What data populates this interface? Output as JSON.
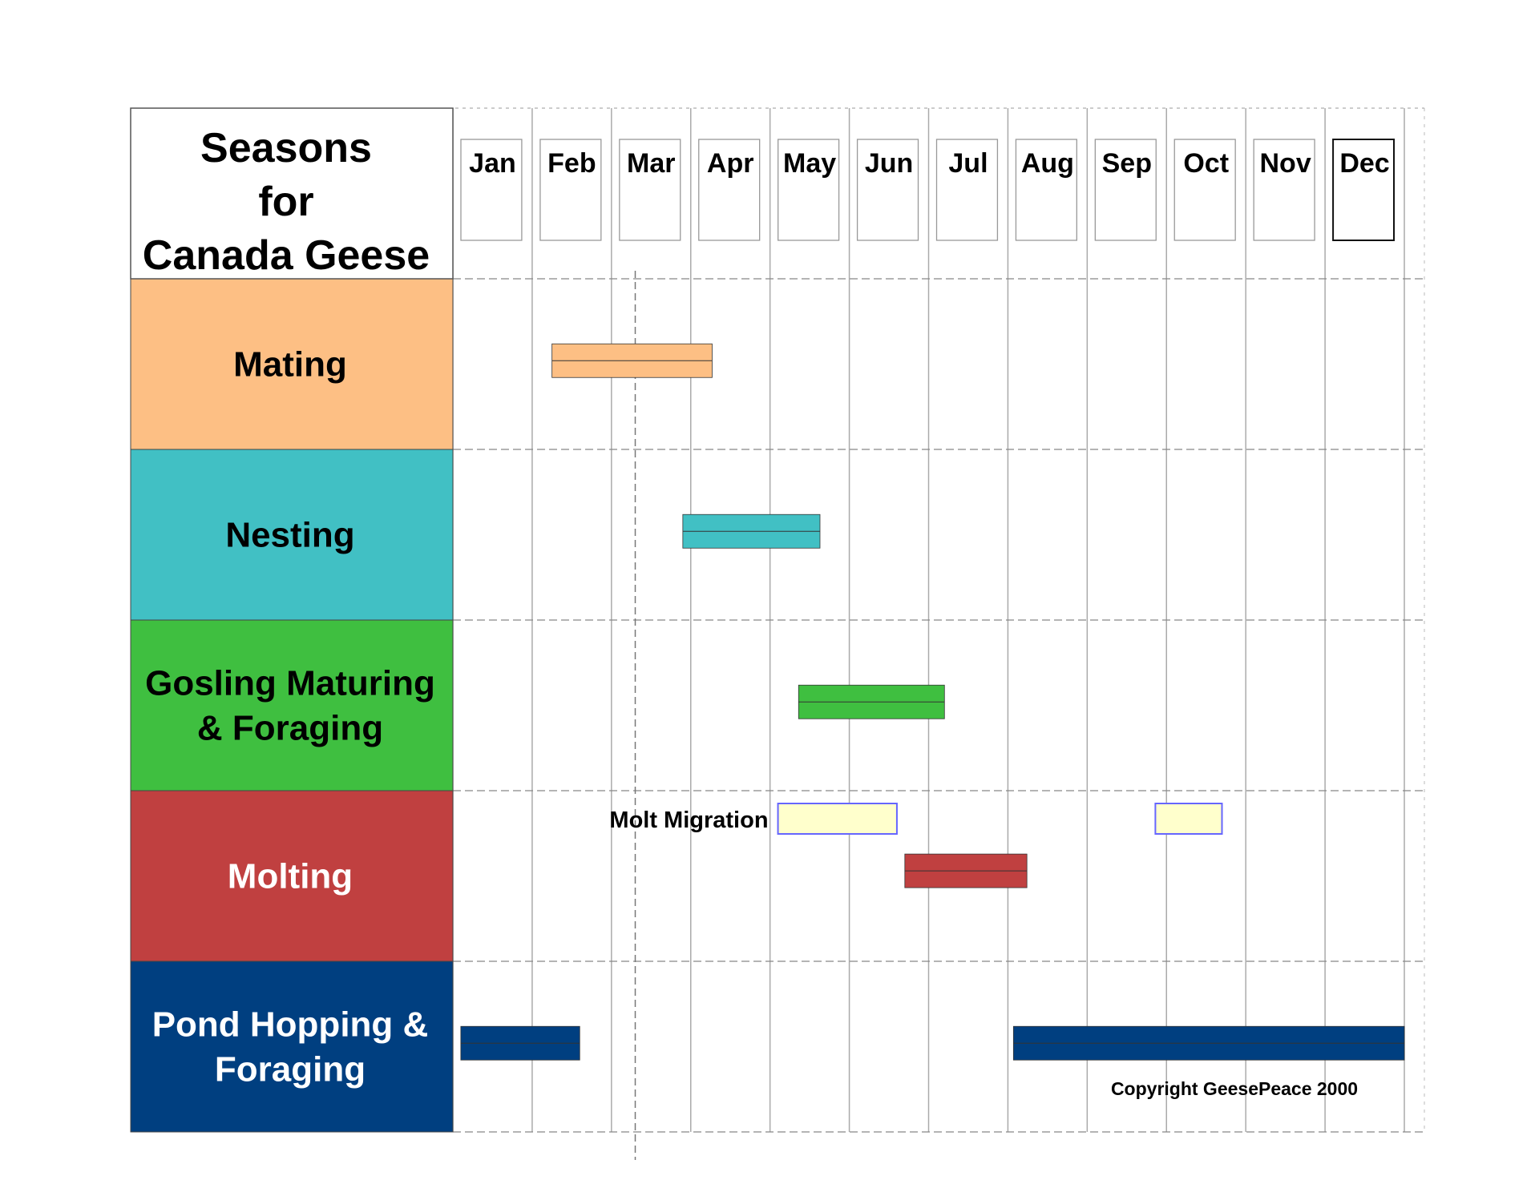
{
  "chart_data": {
    "type": "gantt",
    "title": "Seasons for Canada Geese",
    "title_lines": [
      "Seasons",
      "for",
      "Canada Geese"
    ],
    "months": [
      "Jan",
      "Feb",
      "Mar",
      "Apr",
      "May",
      "Jun",
      "Jul",
      "Aug",
      "Sep",
      "Oct",
      "Nov",
      "Dec"
    ],
    "time_unit": "month (1 = start of Jan, 13 = end of Dec)",
    "rows": [
      {
        "label_lines": [
          "Mating"
        ],
        "color": "#FDBF84",
        "text_color": "#000000",
        "bars": [
          {
            "start": 2.25,
            "end": 4.27
          }
        ]
      },
      {
        "label_lines": [
          "Nesting"
        ],
        "color": "#41C0C4",
        "text_color": "#000000",
        "bars": [
          {
            "start": 3.9,
            "end": 5.63
          }
        ]
      },
      {
        "label_lines": [
          "Gosling Maturing",
          "& Foraging"
        ],
        "color": "#3FBF40",
        "text_color": "#000000",
        "bars": [
          {
            "start": 5.36,
            "end": 7.2
          }
        ]
      },
      {
        "label_lines": [
          "Molting"
        ],
        "color": "#C04040",
        "text_color": "#ffffff",
        "bars": [
          {
            "start": 6.7,
            "end": 8.24
          }
        ]
      },
      {
        "label_lines": [
          "Pond Hopping &",
          "Foraging"
        ],
        "color": "#003F80",
        "text_color": "#ffffff",
        "bars": [
          {
            "start": 1.1,
            "end": 2.6
          },
          {
            "start": 8.07,
            "end": 13
          }
        ]
      }
    ],
    "molt_migration": {
      "label": "Molt Migration",
      "color": "#FFFFCC",
      "border_color": "#6666FF",
      "periods": [
        {
          "start": 5.1,
          "end": 6.6
        },
        {
          "start": 9.86,
          "end": 10.7
        }
      ]
    },
    "marker_line_month": 3.3,
    "copyright": "Copyright GeesePeace 2000"
  }
}
